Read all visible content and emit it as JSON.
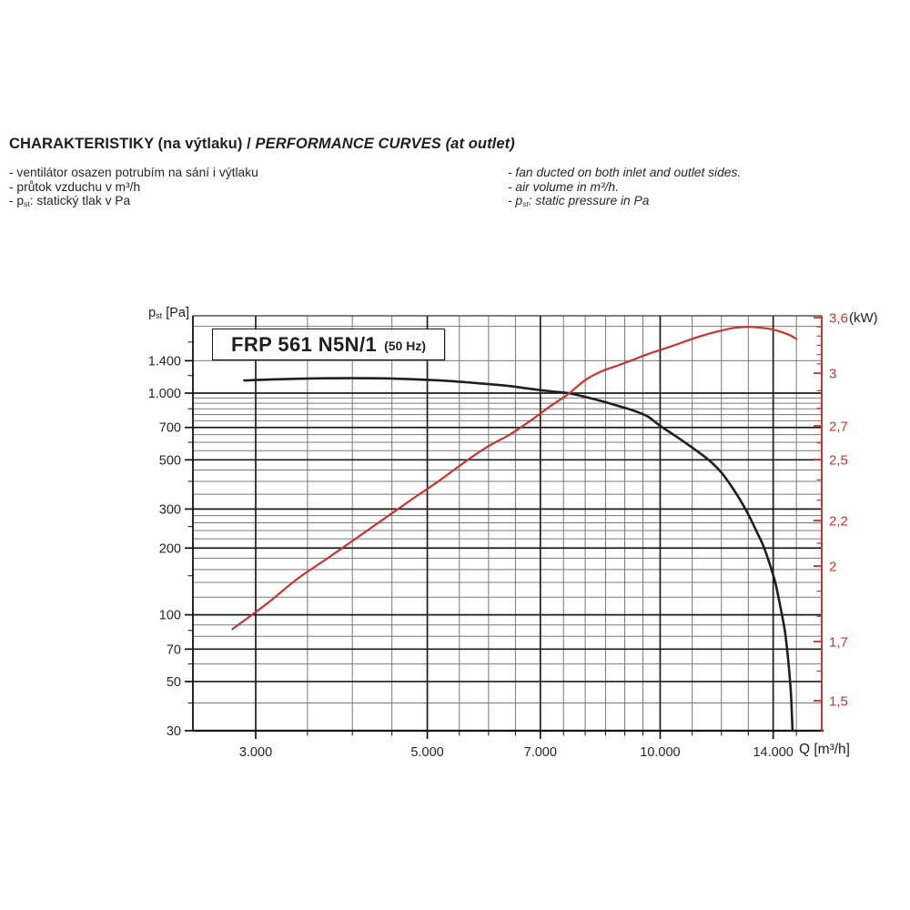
{
  "document": {
    "heading": {
      "czech": "CHARAKTERISTIKY (na výtlaku) / ",
      "english": "PERFORMANCE CURVES (at outlet)"
    },
    "notes_czech": [
      {
        "text": "- ventilátor osazen potrubím na sání i výtlaku"
      },
      {
        "text": "- průtok vzduchu v m³/h"
      },
      {
        "pre": "- p",
        "sub": "st",
        "post": ": statický tlak v Pa"
      }
    ],
    "notes_english": [
      {
        "text": "- fan ducted on both inlet and outlet sides."
      },
      {
        "text": "- air volume in m³/h."
      },
      {
        "pre": "- p",
        "sub": "st",
        "post": ": static pressure in Pa"
      }
    ]
  },
  "chart": {
    "model": "FRP 561 N5N/1",
    "frequency": "(50 Hz)",
    "y_left_axis_label": {
      "pre": "p",
      "sub": "st",
      "post": " [Pa]"
    },
    "y_right_axis_unit": "(kW)",
    "x_axis_label": "Q [m³/h]"
  },
  "chart_data": {
    "type": "line",
    "title": "FRP 561 N5N/1 (50 Hz)",
    "xlabel": "Q [m³/h]",
    "x_scale": "log",
    "x_range": [
      2500,
      16200
    ],
    "x_major_ticks": [
      3000,
      5000,
      7000,
      10000,
      14000
    ],
    "x_major_tick_labels": [
      "3.000",
      "5.000",
      "7.000",
      "10.000",
      "14.000"
    ],
    "x_minor_ticks": [
      3500,
      4000,
      4500,
      5500,
      6000,
      6500,
      7500,
      8000,
      8500,
      9000,
      9500,
      11000,
      12000,
      13000,
      15000
    ],
    "y_left": {
      "label": "pst [Pa]",
      "scale": "log",
      "range": [
        30,
        2100
      ],
      "labeled_ticks": [
        1400,
        1000,
        700,
        500,
        300,
        200,
        100,
        70,
        50,
        30
      ],
      "labeled_tick_texts": [
        "1.400",
        "1.000",
        "700",
        "500",
        "300",
        "200",
        "100",
        "70",
        "50",
        "30"
      ],
      "thick_gridlines": [
        1000,
        700,
        500,
        300,
        200,
        100,
        70,
        50,
        30
      ],
      "thin_gridlines": [
        2000,
        1400,
        950,
        900,
        850,
        800,
        750,
        650,
        600,
        550,
        450,
        400,
        350,
        280,
        260,
        240,
        220,
        180,
        160,
        140,
        120,
        90,
        80,
        60,
        40
      ],
      "minor_axis_ticks": [
        1700,
        1200,
        850,
        600,
        400,
        250,
        150,
        85,
        60,
        40
      ]
    },
    "y_right": {
      "label": "(kW)",
      "range": [
        1.4,
        3.6
      ],
      "labeled_ticks": [
        3.6,
        3,
        2.7,
        2.5,
        2.2,
        2,
        1.7,
        1.5
      ],
      "labeled_tick_texts": [
        "3,6",
        "3",
        "2,7",
        "2,5",
        "2,2",
        "2",
        "1,7",
        "1,5"
      ],
      "minor_ticks": [
        3.5,
        3.4,
        3.3,
        3.2,
        3.1,
        2.9,
        2.8,
        2.6,
        2.4,
        2.3,
        2.1,
        1.9,
        1.8,
        1.6
      ]
    },
    "series": [
      {
        "name": "static_pressure",
        "unit": "Pa",
        "axis": "left",
        "color": "#1f1f1f",
        "points": [
          [
            2900,
            1140
          ],
          [
            3200,
            1155
          ],
          [
            3600,
            1165
          ],
          [
            4000,
            1168
          ],
          [
            4400,
            1165
          ],
          [
            4800,
            1155
          ],
          [
            5200,
            1140
          ],
          [
            5600,
            1120
          ],
          [
            6000,
            1098
          ],
          [
            6400,
            1075
          ],
          [
            6800,
            1045
          ],
          [
            7200,
            1020
          ],
          [
            7600,
            1000
          ],
          [
            8000,
            962
          ],
          [
            8400,
            920
          ],
          [
            8800,
            878
          ],
          [
            9200,
            838
          ],
          [
            9600,
            790
          ],
          [
            9800,
            752
          ],
          [
            10000,
            712
          ],
          [
            10400,
            650
          ],
          [
            10800,
            594
          ],
          [
            11200,
            543
          ],
          [
            11600,
            494
          ],
          [
            12000,
            438
          ],
          [
            12400,
            374
          ],
          [
            12700,
            328
          ],
          [
            13000,
            284
          ],
          [
            13300,
            241
          ],
          [
            13600,
            204
          ],
          [
            13900,
            164
          ],
          [
            14100,
            138
          ],
          [
            14300,
            109
          ],
          [
            14500,
            84
          ],
          [
            14650,
            61
          ],
          [
            14760,
            44
          ],
          [
            14830,
            30
          ]
        ]
      },
      {
        "name": "power_input",
        "unit": "kW",
        "axis": "right",
        "color": "#cc3330",
        "points": [
          [
            2800,
            1.75
          ],
          [
            3100,
            1.85
          ],
          [
            3400,
            1.95
          ],
          [
            3700,
            2.03
          ],
          [
            4000,
            2.11
          ],
          [
            4400,
            2.21
          ],
          [
            4800,
            2.31
          ],
          [
            5200,
            2.4
          ],
          [
            5600,
            2.49
          ],
          [
            6000,
            2.58
          ],
          [
            6400,
            2.65
          ],
          [
            6800,
            2.73
          ],
          [
            7200,
            2.81
          ],
          [
            7600,
            2.88
          ],
          [
            8000,
            2.96
          ],
          [
            8400,
            3.02
          ],
          [
            8800,
            3.08
          ],
          [
            9200,
            3.14
          ],
          [
            9600,
            3.2
          ],
          [
            10000,
            3.25
          ],
          [
            10500,
            3.31
          ],
          [
            11000,
            3.37
          ],
          [
            11500,
            3.42
          ],
          [
            12000,
            3.46
          ],
          [
            12500,
            3.49
          ],
          [
            13000,
            3.5
          ],
          [
            13500,
            3.49
          ],
          [
            14000,
            3.47
          ],
          [
            14400,
            3.44
          ],
          [
            14700,
            3.41
          ],
          [
            15000,
            3.37
          ]
        ]
      }
    ]
  }
}
